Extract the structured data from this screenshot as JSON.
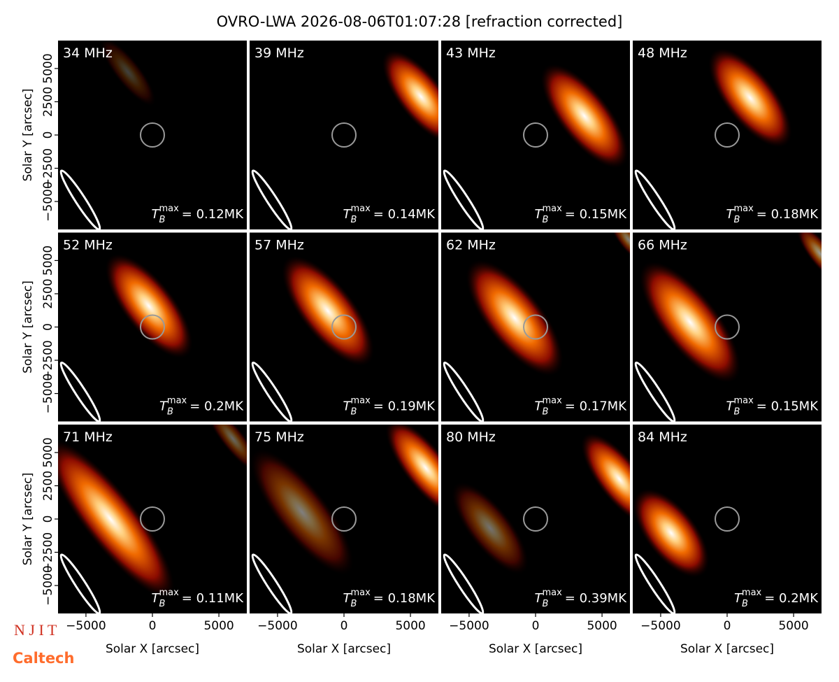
{
  "title": "OVRO-LWA 2026-08-06T01:07:28 [refraction corrected]",
  "logos": [
    "N J I T",
    "Caltech"
  ],
  "chart_data": [
    {
      "type": "image",
      "title": "34 MHz",
      "annotation": {
        "symbol": "T",
        "subscript": "B",
        "superscript": "max",
        "text": "= 0.12MK"
      },
      "xlim": [
        -7100,
        7100
      ],
      "ylim": [
        -7100,
        7100
      ],
      "ylabel": "Solar Y [arcsec]",
      "yticks": [
        {
          "value": -5000,
          "label": "−5000"
        },
        {
          "value": -2500,
          "label": "−2500"
        },
        0,
        2500,
        5000
      ]
    },
    {
      "type": "image",
      "title": "39 MHz",
      "annotation": {
        "symbol": "T",
        "subscript": "B",
        "superscript": "max",
        "text": "= 0.14MK"
      },
      "xlim": [
        -7100,
        7100
      ],
      "ylim": [
        -7100,
        7100
      ]
    },
    {
      "type": "image",
      "title": "43 MHz",
      "annotation": {
        "symbol": "T",
        "subscript": "B",
        "superscript": "max",
        "text": "= 0.15MK"
      },
      "xlim": [
        -7100,
        7100
      ],
      "ylim": [
        -7100,
        7100
      ]
    },
    {
      "type": "image",
      "title": "48 MHz",
      "annotation": {
        "symbol": "T",
        "subscript": "B",
        "superscript": "max",
        "text": "= 0.18MK"
      },
      "xlim": [
        -7100,
        7100
      ],
      "ylim": [
        -7100,
        7100
      ]
    },
    {
      "type": "image",
      "title": "52 MHz",
      "annotation": {
        "symbol": "T",
        "subscript": "B",
        "superscript": "max",
        "text": "= 0.2MK"
      },
      "xlim": [
        -7100,
        7100
      ],
      "ylim": [
        -7100,
        7100
      ],
      "ylabel": "Solar Y [arcsec]",
      "yticks": [
        {
          "value": -5000,
          "label": "−5000"
        },
        {
          "value": -2500,
          "label": "−2500"
        },
        0,
        2500,
        5000
      ]
    },
    {
      "type": "image",
      "title": "57 MHz",
      "annotation": {
        "symbol": "T",
        "subscript": "B",
        "superscript": "max",
        "text": "= 0.19MK"
      },
      "xlim": [
        -7100,
        7100
      ],
      "ylim": [
        -7100,
        7100
      ]
    },
    {
      "type": "image",
      "title": "62 MHz",
      "annotation": {
        "symbol": "T",
        "subscript": "B",
        "superscript": "max",
        "text": "= 0.17MK"
      },
      "xlim": [
        -7100,
        7100
      ],
      "ylim": [
        -7100,
        7100
      ]
    },
    {
      "type": "image",
      "title": "66 MHz",
      "annotation": {
        "symbol": "T",
        "subscript": "B",
        "superscript": "max",
        "text": "= 0.15MK"
      },
      "xlim": [
        -7100,
        7100
      ],
      "ylim": [
        -7100,
        7100
      ]
    },
    {
      "type": "image",
      "title": "71 MHz",
      "annotation": {
        "symbol": "T",
        "subscript": "B",
        "superscript": "max",
        "text": "= 0.11MK"
      },
      "xlim": [
        -7100,
        7100
      ],
      "ylim": [
        -7100,
        7100
      ],
      "ylabel": "Solar Y [arcsec]",
      "yticks": [
        {
          "value": -5000,
          "label": "−5000"
        },
        {
          "value": -2500,
          "label": "−2500"
        },
        0,
        2500,
        5000
      ],
      "xlabel": "Solar X [arcsec]",
      "xticks": [
        {
          "value": -5000,
          "label": "−5000"
        },
        0,
        5000
      ]
    },
    {
      "type": "image",
      "title": "75 MHz",
      "annotation": {
        "symbol": "T",
        "subscript": "B",
        "superscript": "max",
        "text": "= 0.18MK"
      },
      "xlim": [
        -7100,
        7100
      ],
      "ylim": [
        -7100,
        7100
      ],
      "xlabel": "Solar X [arcsec]",
      "xticks": [
        {
          "value": -5000,
          "label": "−5000"
        },
        0,
        5000
      ]
    },
    {
      "type": "image",
      "title": "80 MHz",
      "annotation": {
        "symbol": "T",
        "subscript": "B",
        "superscript": "max",
        "text": "= 0.39MK"
      },
      "xlim": [
        -7100,
        7100
      ],
      "ylim": [
        -7100,
        7100
      ],
      "xlabel": "Solar X [arcsec]",
      "xticks": [
        {
          "value": -5000,
          "label": "−5000"
        },
        0,
        5000
      ]
    },
    {
      "type": "image",
      "title": "84 MHz",
      "annotation": {
        "symbol": "T",
        "subscript": "B",
        "superscript": "max",
        "text": "= 0.2MK"
      },
      "xlim": [
        -7100,
        7100
      ],
      "ylim": [
        -7100,
        7100
      ],
      "xlabel": "Solar X [arcsec]",
      "xticks": [
        {
          "value": -5000,
          "label": "−5000"
        },
        0,
        5000
      ]
    }
  ]
}
